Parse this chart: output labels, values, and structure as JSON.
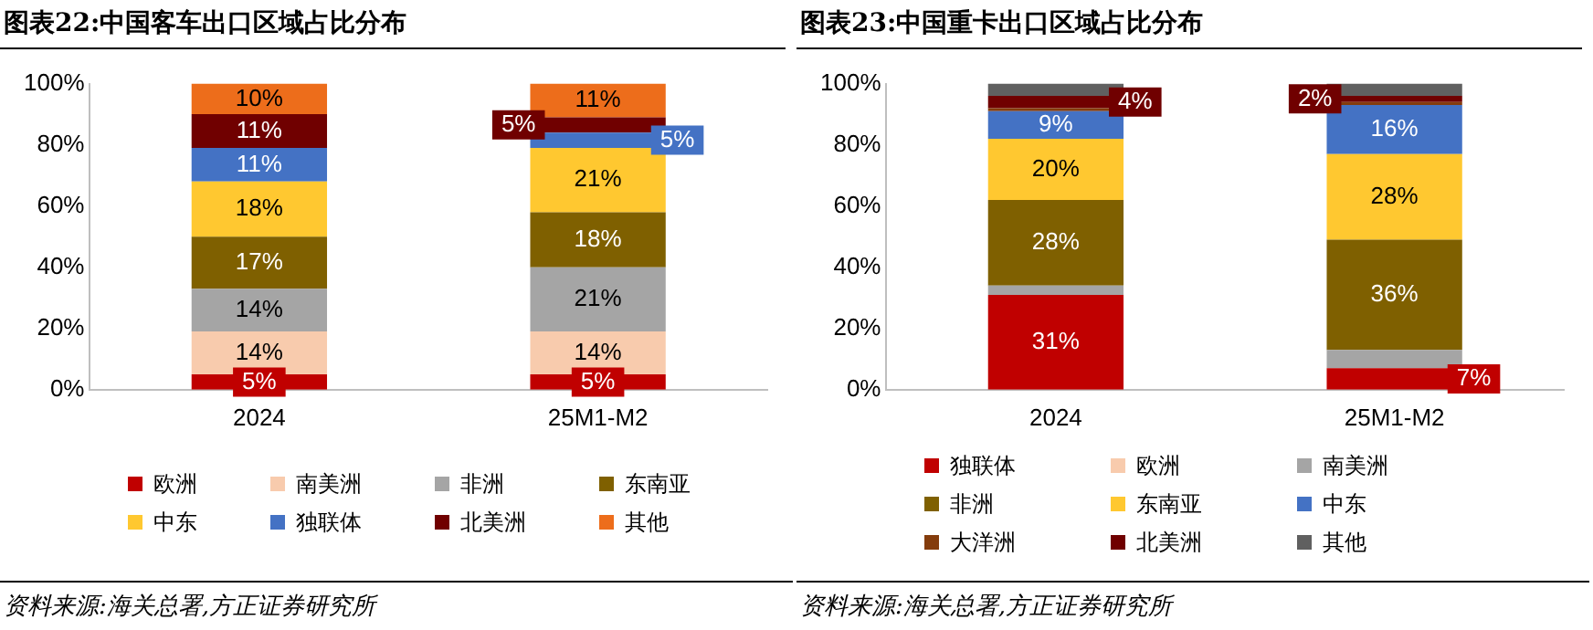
{
  "chart_data": [
    {
      "type": "bar",
      "title": "图表22:中国客车出口区域占比分布",
      "stacked": true,
      "legend": "bottom",
      "grid": false,
      "categories": [
        "2024",
        "25M1-M2"
      ],
      "ylim": [
        0,
        100
      ],
      "yticks": [
        {
          "value": 0,
          "label": "0%"
        },
        {
          "value": 20,
          "label": "20%"
        },
        {
          "value": 40,
          "label": "40%"
        },
        {
          "value": 60,
          "label": "60%"
        },
        {
          "value": 80,
          "label": "80%"
        },
        {
          "value": 100,
          "label": "100%"
        }
      ],
      "series": [
        {
          "name": "欧洲",
          "color": "#c00000",
          "values": [
            5,
            5
          ],
          "value_labels": [
            "5%",
            "5%"
          ]
        },
        {
          "name": "南美洲",
          "color": "#f8cbad",
          "values": [
            14,
            14
          ],
          "value_labels": [
            "14%",
            "14%"
          ]
        },
        {
          "name": "非洲",
          "color": "#a5a5a5",
          "values": [
            14,
            21
          ],
          "value_labels": [
            "14%",
            "21%"
          ]
        },
        {
          "name": "东南亚",
          "color": "#7f6000",
          "values": [
            17,
            18
          ],
          "value_labels": [
            "17%",
            "18%"
          ]
        },
        {
          "name": "中东",
          "color": "#ffc830",
          "values": [
            18,
            21
          ],
          "value_labels": [
            "18%",
            "21%"
          ]
        },
        {
          "name": "独联体",
          "color": "#4472c4",
          "values": [
            11,
            5
          ],
          "value_labels": [
            "11%",
            "5%"
          ]
        },
        {
          "name": "北美洲",
          "color": "#700000",
          "values": [
            11,
            5
          ],
          "value_labels": [
            "11%",
            "5%"
          ]
        },
        {
          "name": "其他",
          "color": "#ed6d1b",
          "values": [
            10,
            11
          ],
          "value_labels": [
            "10%",
            "11%"
          ]
        }
      ],
      "annotations": [
        "资料来源:海关总署,方正证券研究所"
      ]
    },
    {
      "type": "bar",
      "title": "图表23:中国重卡出口区域占比分布",
      "stacked": true,
      "legend": "bottom",
      "grid": false,
      "categories": [
        "2024",
        "25M1-M2"
      ],
      "ylim": [
        0,
        100
      ],
      "yticks": [
        {
          "value": 0,
          "label": "0%"
        },
        {
          "value": 20,
          "label": "20%"
        },
        {
          "value": 40,
          "label": "40%"
        },
        {
          "value": 60,
          "label": "60%"
        },
        {
          "value": 80,
          "label": "80%"
        },
        {
          "value": 100,
          "label": "100%"
        }
      ],
      "series": [
        {
          "name": "独联体",
          "color": "#c00000",
          "values": [
            31,
            7
          ],
          "value_labels": [
            "31%",
            "7%"
          ]
        },
        {
          "name": "欧洲",
          "color": "#f8cbad",
          "values": [
            0,
            0
          ],
          "value_labels": [
            null,
            null
          ]
        },
        {
          "name": "南美洲",
          "color": "#a5a5a5",
          "values": [
            3,
            6
          ],
          "value_labels": [
            null,
            null
          ]
        },
        {
          "name": "非洲",
          "color": "#7f6000",
          "values": [
            28,
            36
          ],
          "value_labels": [
            "28%",
            "36%"
          ]
        },
        {
          "name": "东南亚",
          "color": "#ffc830",
          "values": [
            20,
            28
          ],
          "value_labels": [
            "20%",
            "28%"
          ]
        },
        {
          "name": "中东",
          "color": "#4472c4",
          "values": [
            9,
            16
          ],
          "value_labels": [
            "9%",
            "16%"
          ]
        },
        {
          "name": "大洋洲",
          "color": "#843c0c",
          "values": [
            1,
            1
          ],
          "value_labels": [
            null,
            null
          ]
        },
        {
          "name": "北美洲",
          "color": "#700000",
          "values": [
            4,
            2
          ],
          "value_labels": [
            "4%",
            "2%"
          ]
        },
        {
          "name": "其他",
          "color": "#606060",
          "values": [
            4,
            4
          ],
          "value_labels": [
            null,
            null
          ]
        }
      ],
      "annotations": [
        "资料来源:海关总署,方正证券研究所"
      ]
    }
  ]
}
